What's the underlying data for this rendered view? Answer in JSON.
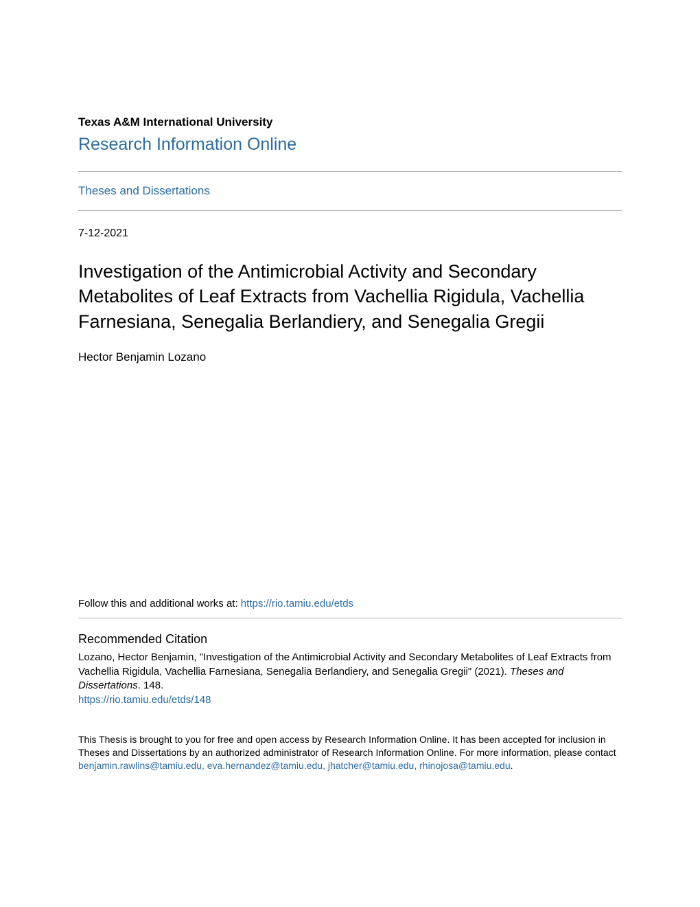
{
  "header": {
    "university": "Texas A&M International University",
    "repository": "Research Information Online"
  },
  "breadcrumb": {
    "section": "Theses and Dissertations"
  },
  "metadata": {
    "date": "7-12-2021",
    "title": "Investigation of the Antimicrobial Activity and Secondary Metabolites of Leaf Extracts from Vachellia Rigidula, Vachellia Farnesiana, Senegalia Berlandiery, and Senegalia Gregii",
    "author": "Hector Benjamin Lozano"
  },
  "follow": {
    "prefix": "Follow this and additional works at: ",
    "url": "https://rio.tamiu.edu/etds"
  },
  "citation": {
    "heading": "Recommended Citation",
    "text_before_italic": "Lozano, Hector Benjamin, \"Investigation of the Antimicrobial Activity and Secondary Metabolites of Leaf Extracts from Vachellia Rigidula, Vachellia Farnesiana, Senegalia Berlandiery, and Senegalia Gregii\" (2021). ",
    "italic": "Theses and Dissertations",
    "text_after_italic": ". 148.",
    "link": "https://rio.tamiu.edu/etds/148"
  },
  "footer": {
    "text_before_link": "This Thesis is brought to you for free and open access by Research Information Online. It has been accepted for inclusion in Theses and Dissertations by an authorized administrator of Research Information Online. For more information, please contact ",
    "contact_emails": "benjamin.rawlins@tamiu.edu, eva.hernandez@tamiu.edu, jhatcher@tamiu.edu, rhinojosa@tamiu.edu",
    "text_after_link": "."
  },
  "colors": {
    "link": "#2c6ca0",
    "text": "#000000",
    "divider": "#b0b0b0",
    "background": "#ffffff"
  },
  "typography": {
    "body_font": "Arial, Helvetica, sans-serif",
    "university_size": 17,
    "repository_size": 25,
    "section_link_size": 17,
    "date_size": 16,
    "title_size": 27,
    "author_size": 17,
    "follow_size": 15,
    "heading_size": 18,
    "citation_size": 15,
    "footer_size": 14
  }
}
